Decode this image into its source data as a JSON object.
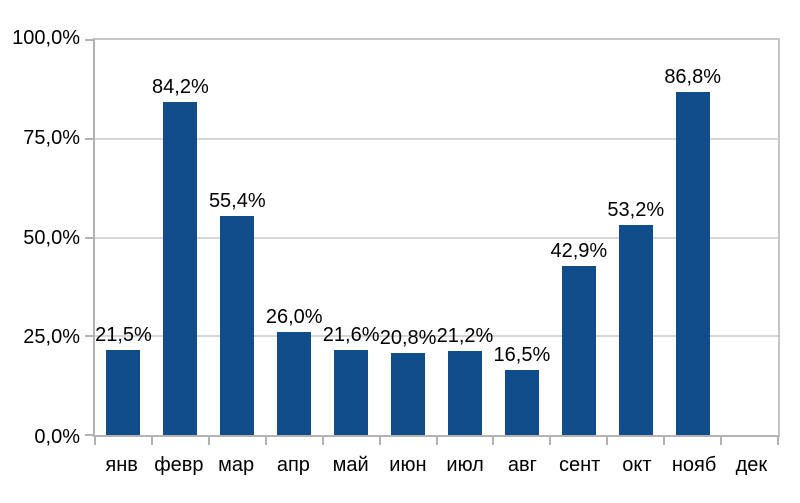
{
  "chart_data": {
    "type": "bar",
    "title": "",
    "xlabel": "",
    "ylabel": "",
    "categories": [
      "янв",
      "февр",
      "мар",
      "апр",
      "май",
      "июн",
      "июл",
      "авг",
      "сент",
      "окт",
      "нояб",
      "дек"
    ],
    "values": [
      21.5,
      84.2,
      55.4,
      26.0,
      21.6,
      20.8,
      21.2,
      16.5,
      42.9,
      53.2,
      86.8,
      null
    ],
    "value_labels": [
      "21,5%",
      "84,2%",
      "55,4%",
      "26,0%",
      "21,6%",
      "20,8%",
      "21,2%",
      "16,5%",
      "42,9%",
      "53,2%",
      "86,8%",
      ""
    ],
    "y_tick_labels": [
      "100,0%",
      "75,0%",
      "50,0%",
      "25,0%",
      "0,0%"
    ],
    "y_tick_values": [
      100,
      75,
      50,
      25,
      0
    ],
    "ylim": [
      0,
      100
    ],
    "y_major_step": 25,
    "grid": true,
    "legend_position": "none",
    "decimal_separator": ",",
    "colors": {
      "bar": "#114C8B",
      "gridline": "#d6d6d6",
      "axis": "#b3b3b3",
      "plot_border": "#c6c6c6",
      "text": "#000000",
      "background": "#ffffff"
    }
  }
}
